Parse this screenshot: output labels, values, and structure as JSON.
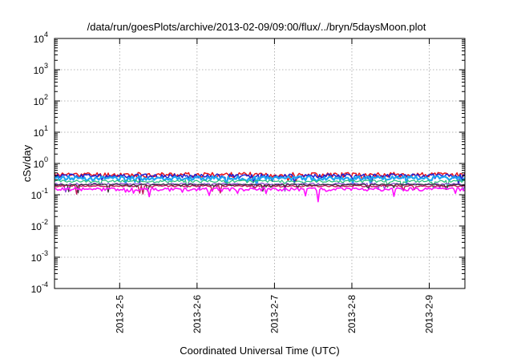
{
  "chart_data": {
    "type": "line",
    "title": "/data/run/goesPlots/archive/2013-02-09/09:00/flux/../bryn/5daysMoon.plot",
    "xlabel": "Coordinated Universal Time (UTC)",
    "ylabel": "cSv/day",
    "yscale": "log",
    "ylim": [
      0.0001,
      10000
    ],
    "xlim": [
      2013.0208,
      2013.0945
    ],
    "grid": true,
    "legend": "none",
    "y_ticks": [
      {
        "base": "10",
        "exp": "-4",
        "value": 0.0001
      },
      {
        "base": "10",
        "exp": "-3",
        "value": 0.001
      },
      {
        "base": "10",
        "exp": "-2",
        "value": 0.01
      },
      {
        "base": "10",
        "exp": "-1",
        "value": 0.1
      },
      {
        "base": "10",
        "exp": "0",
        "value": 1
      },
      {
        "base": "10",
        "exp": "1",
        "value": 10
      },
      {
        "base": "10",
        "exp": "2",
        "value": 100
      },
      {
        "base": "10",
        "exp": "3",
        "value": 1000
      },
      {
        "base": "10",
        "exp": "4",
        "value": 10000
      }
    ],
    "x_ticks": [
      {
        "label": "2013-2-5",
        "value": 2013.0325
      },
      {
        "label": "2013-2-6",
        "value": 2013.0464
      },
      {
        "label": "2013-2-7",
        "value": 2013.0603
      },
      {
        "label": "2013-2-8",
        "value": 2013.0742
      },
      {
        "label": "2013-2-9",
        "value": 2013.0881
      }
    ],
    "series": [
      {
        "color": "#e8161b",
        "width": 1.5,
        "base": 0.44,
        "amp": 0.18,
        "seed": 11
      },
      {
        "color": "#1f1fd0",
        "width": 1.5,
        "base": 0.4,
        "amp": 0.16,
        "seed": 12
      },
      {
        "color": "#1ea7f2",
        "width": 2.2,
        "base": 0.34,
        "amp": 0.15,
        "seed": 13
      },
      {
        "color": "#25c07a",
        "width": 1.2,
        "base": 0.27,
        "amp": 0.09,
        "seed": 14
      },
      {
        "color": "#8a3fd1",
        "width": 1.2,
        "base": 0.22,
        "amp": 0.07,
        "seed": 15
      },
      {
        "color": "#c2185b",
        "width": 1.4,
        "base": 0.19,
        "amp": 0.06,
        "seed": 16
      },
      {
        "color": "#333333",
        "width": 1.2,
        "base": 0.21,
        "amp": 0.05,
        "seed": 17
      },
      {
        "color": "#ff11ff",
        "width": 1.6,
        "base": 0.15,
        "amp": 0.12,
        "seed": 18
      }
    ]
  }
}
